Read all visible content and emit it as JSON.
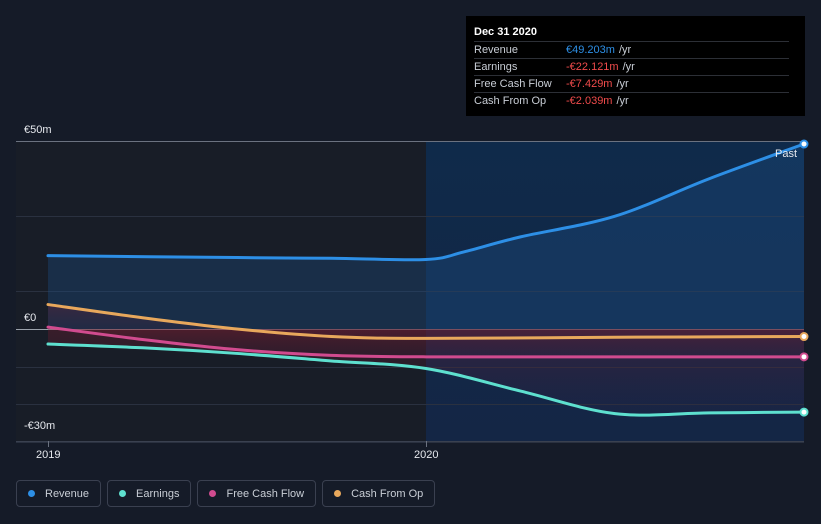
{
  "tooltip": {
    "date": "Dec 31 2020",
    "rows": [
      {
        "label": "Revenue",
        "value": "€49.203m",
        "unit": "/yr",
        "color": "#2d8fe6"
      },
      {
        "label": "Earnings",
        "value": "-€22.121m",
        "unit": "/yr",
        "color": "#f04b4b"
      },
      {
        "label": "Free Cash Flow",
        "value": "-€7.429m",
        "unit": "/yr",
        "color": "#f04b4b"
      },
      {
        "label": "Cash From Op",
        "value": "-€2.039m",
        "unit": "/yr",
        "color": "#f04b4b"
      }
    ]
  },
  "legend": [
    {
      "label": "Revenue",
      "color": "#2d8fe6"
    },
    {
      "label": "Earnings",
      "color": "#5ee0cf"
    },
    {
      "label": "Free Cash Flow",
      "color": "#d14b8f"
    },
    {
      "label": "Cash From Op",
      "color": "#e8a85c"
    }
  ],
  "chart_data": {
    "type": "line",
    "y_tick_labels": [
      "€50m",
      "€0",
      "-€30m"
    ],
    "y_ticks": [
      50,
      0,
      -30
    ],
    "ylim": [
      -30,
      50
    ],
    "x_tick_labels": [
      "2019",
      "2020"
    ],
    "x_ticks": [
      2019.0,
      2020.0
    ],
    "xlim": [
      2018.93,
      2021.0
    ],
    "past_label": "Past",
    "past_start": 2020.0,
    "series": [
      {
        "name": "Revenue",
        "color": "#2d8fe6",
        "x": [
          2019.0,
          2019.5,
          2019.75,
          2020.0,
          2020.1,
          2020.25,
          2020.5,
          2020.75,
          2021.0
        ],
        "y": [
          19.5,
          19.0,
          18.8,
          18.5,
          20.5,
          24.5,
          30.0,
          40.0,
          49.2
        ]
      },
      {
        "name": "Earnings",
        "color": "#5ee0cf",
        "x": [
          2019.0,
          2019.25,
          2019.5,
          2019.75,
          2020.0,
          2020.25,
          2020.5,
          2020.75,
          2021.0
        ],
        "y": [
          -4.0,
          -5.0,
          -6.5,
          -8.5,
          -10.5,
          -16.5,
          -22.5,
          -22.3,
          -22.1
        ]
      },
      {
        "name": "Free Cash Flow",
        "color": "#d14b8f",
        "x": [
          2019.0,
          2019.25,
          2019.5,
          2019.75,
          2020.0,
          2020.5,
          2021.0
        ],
        "y": [
          0.5,
          -2.8,
          -5.5,
          -7.0,
          -7.4,
          -7.4,
          -7.4
        ]
      },
      {
        "name": "Cash From Op",
        "color": "#e8a85c",
        "x": [
          2019.0,
          2019.25,
          2019.5,
          2019.75,
          2020.0,
          2020.5,
          2021.0
        ],
        "y": [
          6.5,
          3.0,
          0.0,
          -2.0,
          -2.5,
          -2.2,
          -2.0
        ]
      }
    ],
    "grid": true
  }
}
